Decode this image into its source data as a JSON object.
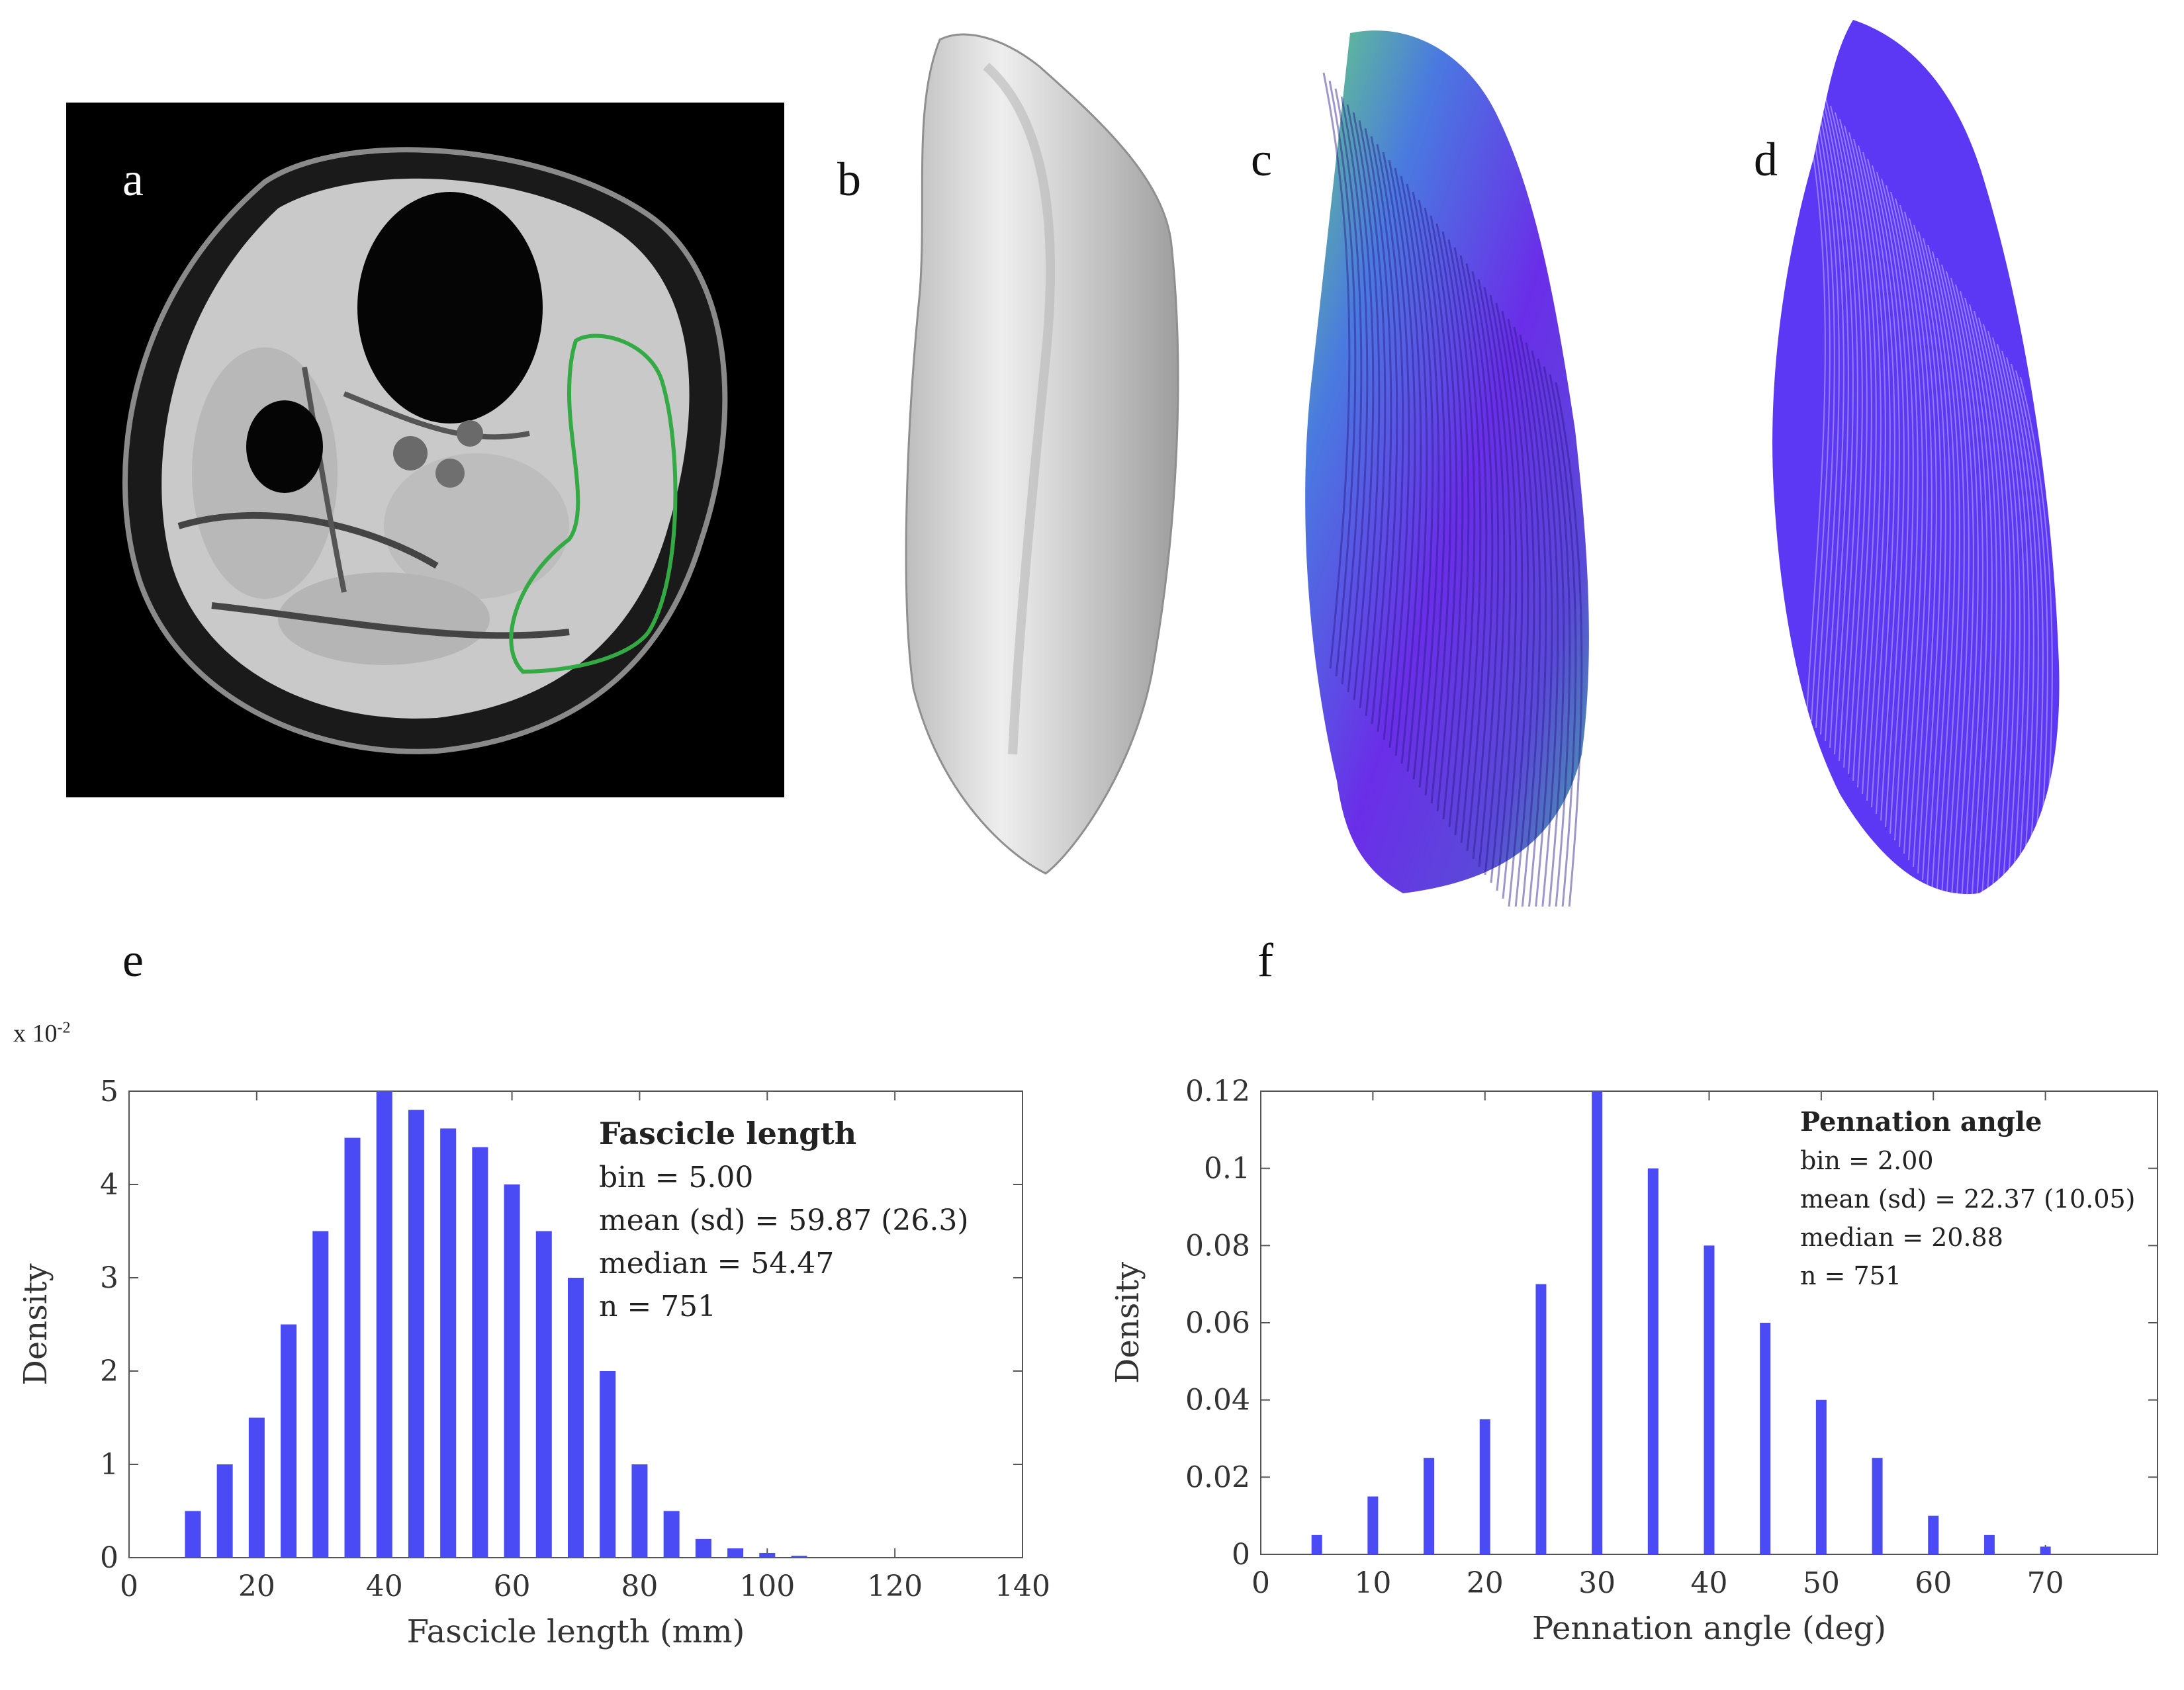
{
  "panels": {
    "a": "a",
    "b": "b",
    "c": "c",
    "d": "d",
    "e": "e",
    "f": "f"
  },
  "colors": {
    "bar": "#4b4bf5",
    "roi_outline": "#33aa44",
    "fiber": "#3a16f0",
    "surface": "#d9d9d9"
  },
  "scale_label": {
    "prefix": "x 10",
    "exponent": "-2"
  },
  "chart_data": [
    {
      "type": "bar",
      "id": "fascicle-length-histogram",
      "xlabel": "Fascicle length (mm)",
      "ylabel": "Density",
      "xlim": [
        0,
        140
      ],
      "ylim": [
        0,
        5
      ],
      "xticks": [
        0,
        20,
        40,
        60,
        80,
        100,
        120,
        140
      ],
      "yticks": [
        0,
        1,
        2,
        3,
        4,
        5
      ],
      "x": [
        10,
        15,
        20,
        25,
        30,
        35,
        40,
        45,
        50,
        55,
        60,
        65,
        70,
        75,
        80,
        85,
        90,
        95,
        100,
        105
      ],
      "values": [
        0.5,
        1.0,
        1.5,
        2.5,
        3.5,
        4.5,
        5.0,
        4.8,
        4.6,
        4.4,
        4.0,
        3.5,
        3.0,
        2.0,
        1.0,
        0.5,
        0.2,
        0.1,
        0.05,
        0.02
      ],
      "legend": {
        "title": "Fascicle length",
        "lines": [
          "bin = 5.00",
          "mean (sd) = 59.87 (26.3)",
          "median = 54.47",
          "n = 751"
        ],
        "placement": "top-right"
      }
    },
    {
      "type": "bar",
      "id": "pennation-angle-histogram",
      "xlabel": "Pennation angle (deg)",
      "ylabel": "Density",
      "xlim": [
        0,
        80
      ],
      "ylim": [
        0,
        0.12
      ],
      "xticks": [
        0,
        10,
        20,
        30,
        40,
        50,
        60,
        70
      ],
      "yticks": [
        0,
        0.02,
        0.04,
        0.06,
        0.08,
        0.1,
        0.12
      ],
      "x": [
        5,
        10,
        15,
        20,
        25,
        30,
        35,
        40,
        45,
        50,
        55,
        60,
        65,
        70
      ],
      "values": [
        0.005,
        0.015,
        0.025,
        0.035,
        0.07,
        0.12,
        0.1,
        0.08,
        0.06,
        0.04,
        0.025,
        0.01,
        0.005,
        0.002
      ],
      "legend": {
        "title": "Pennation angle",
        "lines": [
          "bin = 2.00",
          "mean (sd) = 22.37 (10.05)",
          "median = 20.88",
          "n = 751"
        ],
        "placement": "top-right"
      }
    }
  ]
}
